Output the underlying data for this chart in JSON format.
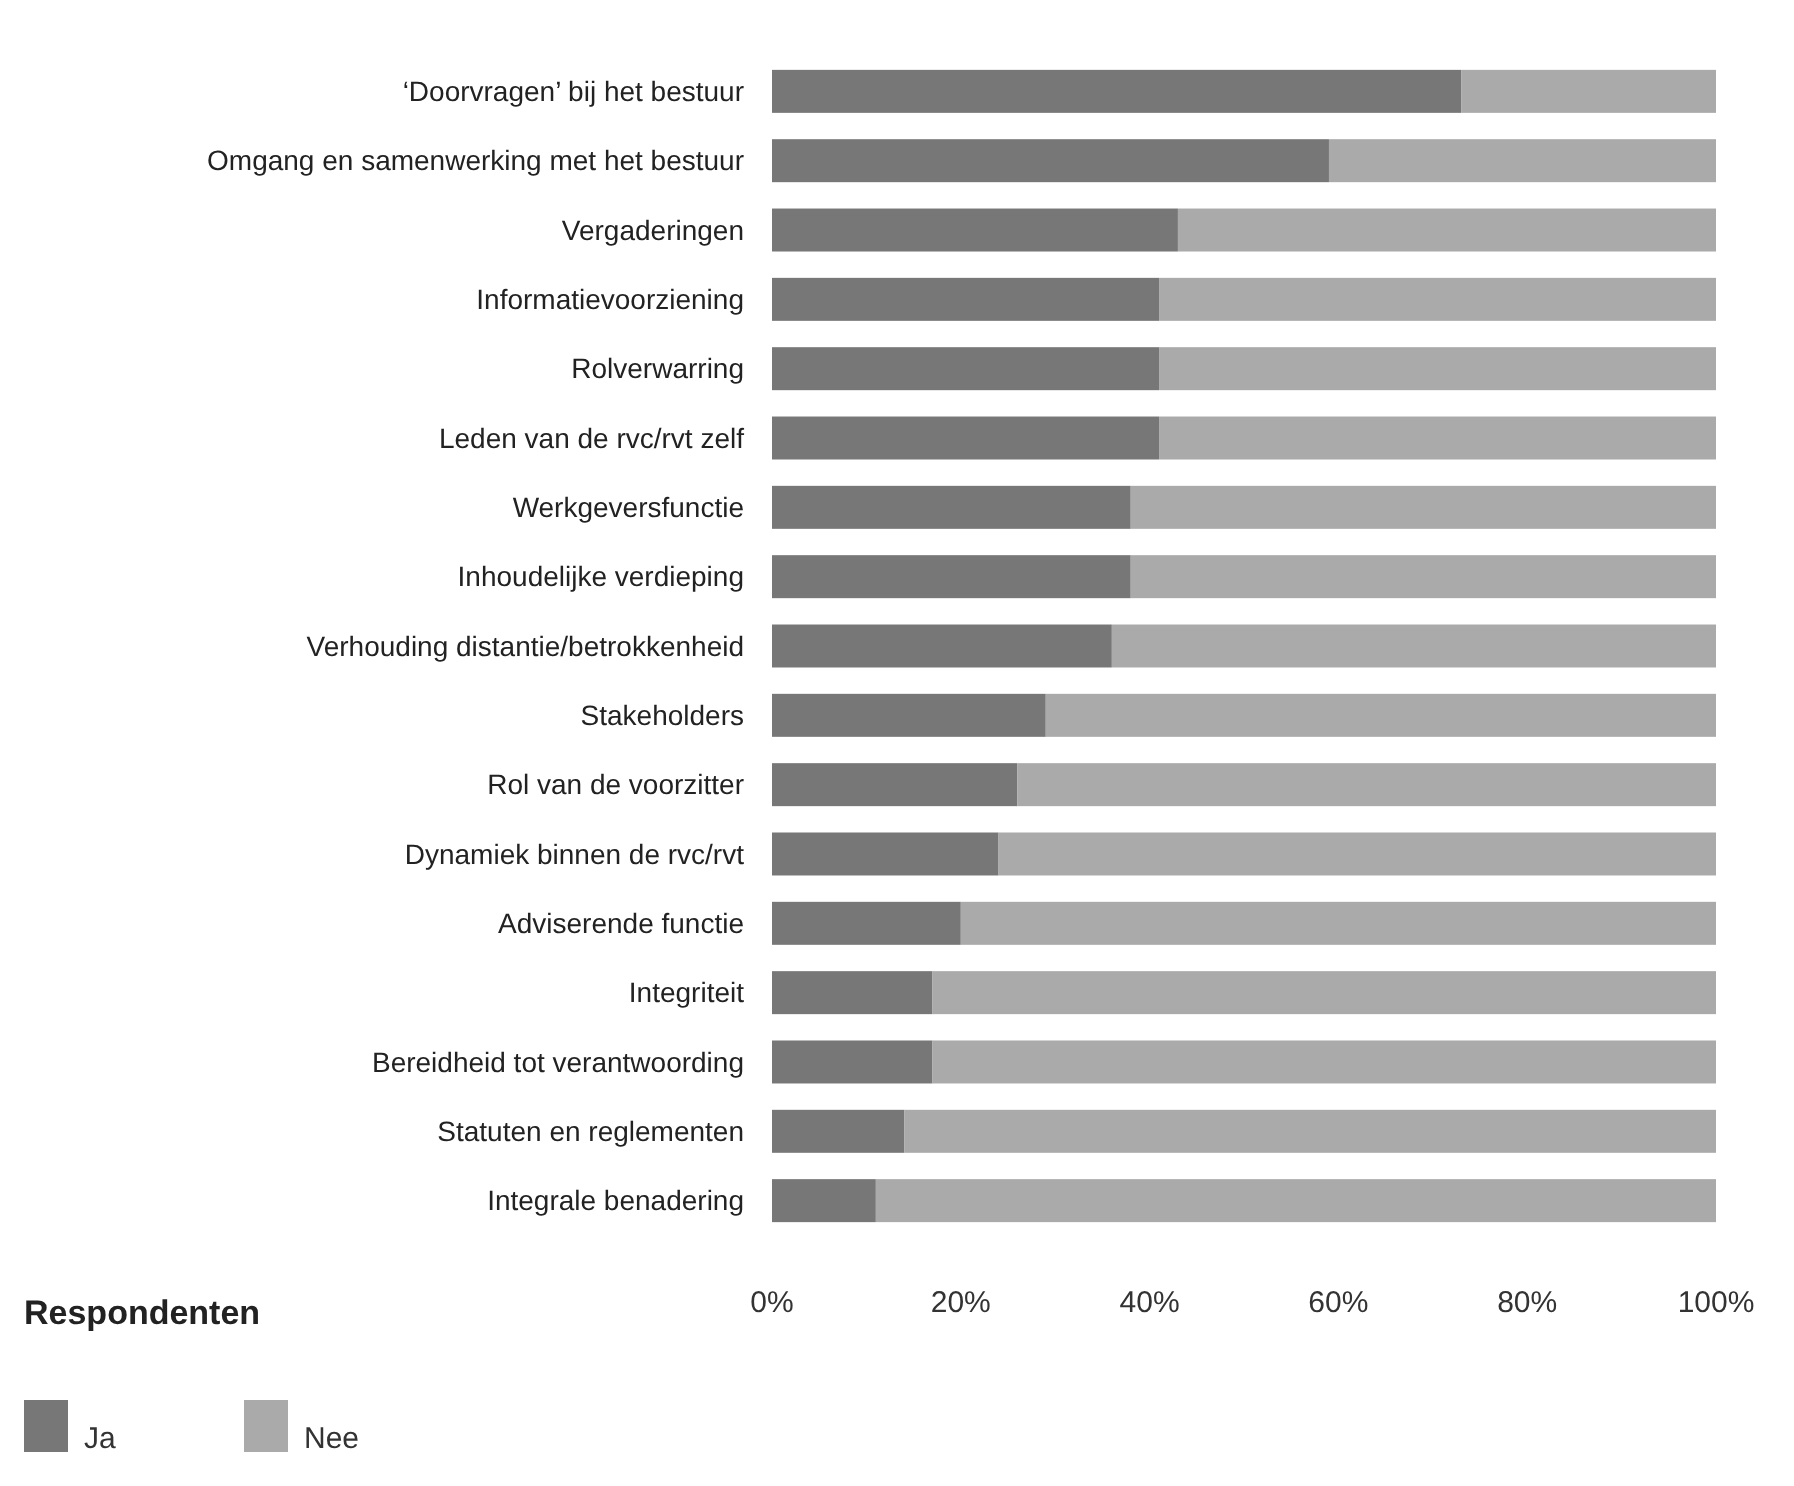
{
  "chart_data": {
    "type": "bar",
    "orientation": "horizontal",
    "stacked": true,
    "categories": [
      "‘Doorvragen’ bij het bestuur",
      "Omgang en samenwerking met het bestuur",
      "Vergaderingen",
      "Informatievoorziening",
      "Rolverwarring",
      "Leden van de rvc/rvt zelf",
      "Werkgeversfunctie",
      "Inhoudelijke verdieping",
      "Verhouding distantie/betrokkenheid",
      "Stakeholders",
      "Rol van de voorzitter",
      "Dynamiek binnen de rvc/rvt",
      "Adviserende functie",
      "Integriteit",
      "Bereidheid tot verantwoording",
      "Statuten en reglementen",
      "Integrale benadering"
    ],
    "series": [
      {
        "name": "Ja",
        "color": "#777777",
        "values": [
          73,
          59,
          43,
          41,
          41,
          41,
          38,
          38,
          36,
          29,
          26,
          24,
          20,
          17,
          17,
          14,
          11
        ]
      },
      {
        "name": "Nee",
        "color": "#aaaaaa",
        "values": [
          27,
          41,
          57,
          59,
          59,
          59,
          62,
          62,
          64,
          71,
          74,
          76,
          80,
          83,
          83,
          86,
          89
        ]
      }
    ],
    "xlim": [
      0,
      100
    ],
    "xticks": [
      {
        "value": 0,
        "label": "0%"
      },
      {
        "value": 20,
        "label": "20%"
      },
      {
        "value": 40,
        "label": "40%"
      },
      {
        "value": 60,
        "label": "60%"
      },
      {
        "value": 80,
        "label": "80%"
      },
      {
        "value": 100,
        "label": "100%"
      }
    ],
    "legend_title": "Respondenten",
    "legend": "bottom left",
    "grid": false
  }
}
